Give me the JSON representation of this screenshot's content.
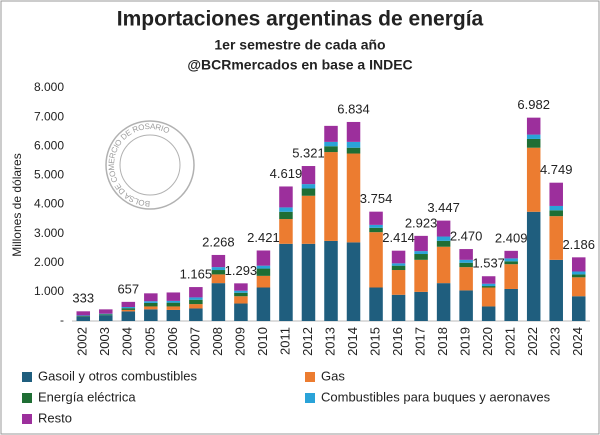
{
  "chart_data": {
    "type": "stacked_bar",
    "title": "Importaciones argentinas de energía",
    "subtitle": "1er semestre de cada año",
    "source": "@BCRmercados en base a INDEC",
    "watermark": "BOLSA DE COMERCIO DE ROSARIO",
    "ylabel": "Millones de dólares",
    "categories": [
      "2002",
      "2003",
      "2004",
      "2005",
      "2006",
      "2007",
      "2008",
      "2009",
      "2010",
      "2011",
      "2012",
      "2013",
      "2014",
      "2015",
      "2016",
      "2017",
      "2018",
      "2019",
      "2020",
      "2021",
      "2022",
      "2023",
      "2024"
    ],
    "series": [
      {
        "name": "Gasoil y otros combustibles",
        "color": "#1f5e7e",
        "values": [
          150,
          200,
          330,
          400,
          380,
          430,
          1300,
          600,
          1150,
          2650,
          2650,
          2750,
          2700,
          1150,
          900,
          1000,
          1300,
          1050,
          500,
          1100,
          3750,
          2100,
          850
        ]
      },
      {
        "name": "Gas",
        "color": "#ec7c30",
        "values": [
          0,
          0,
          50,
          100,
          120,
          150,
          300,
          250,
          400,
          850,
          1650,
          3050,
          3050,
          1900,
          850,
          1100,
          1250,
          800,
          650,
          850,
          2200,
          1500,
          650
        ]
      },
      {
        "name": "Energía eléctrica",
        "color": "#1f6e34",
        "values": [
          20,
          30,
          60,
          120,
          130,
          150,
          150,
          120,
          250,
          250,
          250,
          200,
          200,
          150,
          150,
          200,
          200,
          150,
          50,
          100,
          300,
          200,
          100
        ]
      },
      {
        "name": "Combustibles para buques y aeronaves",
        "color": "#2aa3d8",
        "values": [
          20,
          20,
          40,
          60,
          60,
          80,
          100,
          70,
          100,
          150,
          150,
          150,
          200,
          100,
          80,
          100,
          150,
          100,
          80,
          100,
          150,
          150,
          100
        ]
      },
      {
        "name": "Resto",
        "color": "#9c2f9c",
        "values": [
          143,
          150,
          177,
          270,
          290,
          355,
          418,
          253,
          521,
          719,
          621,
          550,
          684,
          454,
          434,
          523,
          547,
          370,
          257,
          259,
          582,
          799,
          486
        ]
      }
    ],
    "value_labels": [
      "333",
      null,
      "657",
      null,
      null,
      "1.165",
      "2.268",
      "1.293",
      "2.421",
      "4.619",
      "5.321",
      null,
      "6.834",
      "3.754",
      "2.414",
      "2.923",
      "3.447",
      "2.470",
      "1.537",
      "2.409",
      "6.982",
      "4.749",
      "2.186"
    ],
    "ylim": [
      0,
      8000
    ],
    "yticks": [
      {
        "value": 0,
        "label": "-"
      },
      {
        "value": 1000,
        "label": "1.000"
      },
      {
        "value": 2000,
        "label": "2.000"
      },
      {
        "value": 3000,
        "label": "3.000"
      },
      {
        "value": 4000,
        "label": "4.000"
      },
      {
        "value": 5000,
        "label": "5.000"
      },
      {
        "value": 6000,
        "label": "6.000"
      },
      {
        "value": 7000,
        "label": "7.000"
      },
      {
        "value": 8000,
        "label": "8.000"
      }
    ],
    "grid": false
  }
}
